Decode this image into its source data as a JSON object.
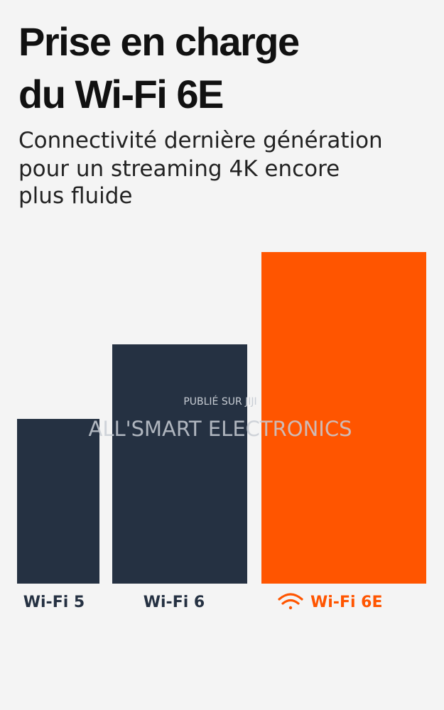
{
  "header": {
    "title": [
      "Prise en charge",
      "du Wi-Fi 6E"
    ],
    "subtitle": [
      "Connectivité dernière génération",
      "pour un streaming 4K encore",
      "plus fluide"
    ]
  },
  "bars": [
    {
      "label": "Wi-Fi 5"
    },
    {
      "label": "Wi-Fi 6"
    },
    {
      "label": "Wi-Fi 6E"
    }
  ],
  "watermark": {
    "small": "PUBLIÉ SUR JIJI",
    "large": "ALL'SMART ELECTRONICS"
  }
}
